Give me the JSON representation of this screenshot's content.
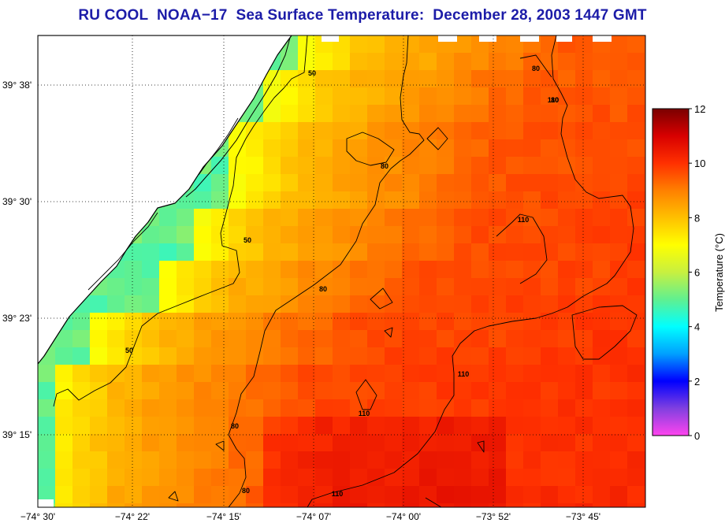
{
  "title": "RU COOL  NOAA−17  Sea Surface Temperature:  December 28, 2003 1447 GMT",
  "latitude_labels": [
    "39° 38'",
    "39° 30'",
    "39° 23'",
    "39° 15'"
  ],
  "longitude_labels": [
    "−74° 30'",
    "−74° 22'",
    "−74° 15'",
    "−74° 07'",
    "−74° 00'",
    "−73° 52'",
    "−73° 45'"
  ],
  "colorbar": {
    "label": "Temperature (°C)",
    "ticks": [
      "0",
      "2",
      "4",
      "6",
      "8",
      "10",
      "12"
    ],
    "range": [
      0,
      12
    ],
    "colors": [
      "#ff44ee",
      "#8040e0",
      "#0000ff",
      "#00a0ff",
      "#00ffff",
      "#60f090",
      "#c8f040",
      "#ffff00",
      "#ffc000",
      "#ff8000",
      "#ff3000",
      "#d80000",
      "#7a0000"
    ]
  },
  "contour_labels": [
    "50",
    "50",
    "50",
    "80",
    "80",
    "80",
    "80",
    "80",
    "80",
    "110",
    "110",
    "110",
    "110",
    "110"
  ],
  "colors": {
    "title": "#1c1ca8",
    "land": "#ffffff",
    "coast": "#000000",
    "grid": "#000000"
  }
}
